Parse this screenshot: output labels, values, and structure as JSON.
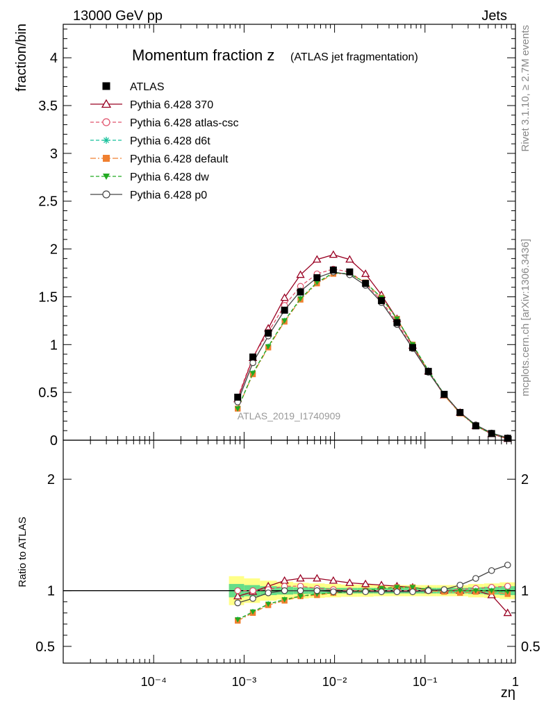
{
  "header": {
    "left": "13000 GeV pp",
    "right": "Jets"
  },
  "side_labels": {
    "rivet": "Rivet 3.1.10, ≥ 2.7M events",
    "source": "mcplots.cern.ch [arXiv:1306.3436]"
  },
  "chart_data": [
    {
      "type": "line",
      "title": "Momentum fraction z",
      "subtitle": "(ATLAS jet fragmentation)",
      "xlabel": "zη",
      "ylabel": "fraction/bin",
      "watermark": "ATLAS_2019_I1740909",
      "xscale": "log",
      "xlim": [
        1e-05,
        1
      ],
      "ylim": [
        0,
        4.35
      ],
      "yticks": [
        0,
        0.5,
        1,
        1.5,
        2,
        2.5,
        3,
        3.5,
        4
      ],
      "ytick_labels": [
        "0",
        "0.5",
        "1",
        "1.5",
        "2",
        "2.5",
        "3",
        "3.5",
        "4"
      ],
      "legend_position": "top-left",
      "x": [
        0.00085,
        0.00125,
        0.00185,
        0.0028,
        0.0042,
        0.0064,
        0.0097,
        0.0147,
        0.022,
        0.033,
        0.049,
        0.073,
        0.109,
        0.163,
        0.244,
        0.364,
        0.545,
        0.82
      ],
      "series": [
        {
          "name": "ATLAS",
          "color": "#000000",
          "marker": "square-filled",
          "dash": "none",
          "values": [
            0.45,
            0.87,
            1.12,
            1.36,
            1.55,
            1.7,
            1.78,
            1.76,
            1.64,
            1.46,
            1.23,
            0.97,
            0.72,
            0.48,
            0.29,
            0.15,
            0.07,
            0.02
          ]
        },
        {
          "name": "Pythia 6.428 370",
          "color": "#990022",
          "marker": "triangle-open",
          "dash": "solid",
          "values": [
            0.43,
            0.86,
            1.17,
            1.49,
            1.73,
            1.89,
            1.94,
            1.89,
            1.74,
            1.52,
            1.27,
            0.99,
            0.72,
            0.47,
            0.29,
            0.15,
            0.065,
            0.015
          ]
        },
        {
          "name": "Pythia 6.428 atlas-csc",
          "color": "#e0506a",
          "marker": "circle-open",
          "dash": "dashed",
          "values": [
            0.45,
            0.87,
            1.13,
            1.41,
            1.61,
            1.74,
            1.79,
            1.76,
            1.64,
            1.46,
            1.23,
            0.97,
            0.72,
            0.48,
            0.29,
            0.15,
            0.07,
            0.02
          ]
        },
        {
          "name": "Pythia 6.428 d6t",
          "color": "#14c09a",
          "marker": "star",
          "dash": "dashed",
          "values": [
            0.33,
            0.7,
            0.98,
            1.25,
            1.48,
            1.65,
            1.75,
            1.74,
            1.65,
            1.49,
            1.27,
            1.0,
            0.73,
            0.48,
            0.29,
            0.15,
            0.07,
            0.02
          ]
        },
        {
          "name": "Pythia 6.428 default",
          "color": "#f08030",
          "marker": "square-filled",
          "dash": "dashdot",
          "values": [
            0.33,
            0.69,
            0.97,
            1.24,
            1.47,
            1.64,
            1.74,
            1.74,
            1.65,
            1.49,
            1.27,
            1.0,
            0.72,
            0.47,
            0.28,
            0.15,
            0.07,
            0.02
          ]
        },
        {
          "name": "Pythia 6.428 dw",
          "color": "#22aa22",
          "marker": "triangle-down-filled",
          "dash": "dashed",
          "values": [
            0.33,
            0.7,
            0.98,
            1.25,
            1.48,
            1.65,
            1.75,
            1.74,
            1.65,
            1.49,
            1.27,
            1.0,
            0.73,
            0.48,
            0.29,
            0.15,
            0.07,
            0.02
          ]
        },
        {
          "name": "Pythia 6.428 p0",
          "color": "#444444",
          "marker": "circle-open",
          "dash": "solid",
          "values": [
            0.4,
            0.81,
            1.09,
            1.36,
            1.56,
            1.7,
            1.76,
            1.73,
            1.62,
            1.44,
            1.21,
            0.96,
            0.71,
            0.48,
            0.29,
            0.16,
            0.075,
            0.025
          ]
        }
      ]
    },
    {
      "type": "line",
      "ylabel": "Ratio to ATLAS",
      "xlabel": "zη",
      "xscale": "log",
      "xlim": [
        1e-05,
        1
      ],
      "ylim": [
        0.35,
        2.35
      ],
      "yticks": [
        0.5,
        1,
        2
      ],
      "ytick_labels": [
        "0.5",
        "1",
        "2"
      ],
      "xtick_labels": [
        "10⁻⁴",
        "10⁻³",
        "10⁻²",
        "10⁻¹",
        "1"
      ],
      "reference_line": 1,
      "uncertainty_band": {
        "inner_color": "#66dd88",
        "outer_color": "#ffff88",
        "x_edges": [
          0.00068,
          0.001,
          0.0015,
          0.0023,
          0.0035,
          0.0052,
          0.0078,
          0.0118,
          0.018,
          0.027,
          0.04,
          0.06,
          0.09,
          0.135,
          0.2,
          0.3,
          0.45,
          0.67,
          1.0
        ],
        "inner_halfwidth": [
          0.06,
          0.05,
          0.04,
          0.035,
          0.03,
          0.03,
          0.025,
          0.025,
          0.025,
          0.025,
          0.025,
          0.025,
          0.025,
          0.025,
          0.025,
          0.03,
          0.035,
          0.04
        ],
        "outer_halfwidth": [
          0.13,
          0.11,
          0.09,
          0.08,
          0.07,
          0.065,
          0.06,
          0.055,
          0.055,
          0.05,
          0.05,
          0.05,
          0.05,
          0.05,
          0.05,
          0.06,
          0.065,
          0.075
        ]
      },
      "x": [
        0.00085,
        0.00125,
        0.00185,
        0.0028,
        0.0042,
        0.0064,
        0.0097,
        0.0147,
        0.022,
        0.033,
        0.049,
        0.073,
        0.109,
        0.163,
        0.244,
        0.364,
        0.545,
        0.82
      ],
      "series": [
        {
          "name": "Pythia 6.428 370",
          "color": "#990022",
          "marker": "triangle-open",
          "dash": "solid",
          "values": [
            0.95,
            0.99,
            1.04,
            1.09,
            1.11,
            1.11,
            1.09,
            1.07,
            1.06,
            1.05,
            1.04,
            1.03,
            1.01,
            1.0,
            1.0,
            1.0,
            0.96,
            0.8
          ]
        },
        {
          "name": "Pythia 6.428 atlas-csc",
          "color": "#e0506a",
          "marker": "circle-open",
          "dash": "dashed",
          "values": [
            1.0,
            1.0,
            1.01,
            1.04,
            1.04,
            1.02,
            1.01,
            1.0,
            1.0,
            1.0,
            1.0,
            1.0,
            1.0,
            1.0,
            1.01,
            1.02,
            1.03,
            1.04
          ]
        },
        {
          "name": "Pythia 6.428 d6t",
          "color": "#14c09a",
          "marker": "star",
          "dash": "dashed",
          "values": [
            0.74,
            0.81,
            0.88,
            0.92,
            0.95,
            0.97,
            0.98,
            0.99,
            1.0,
            1.02,
            1.03,
            1.03,
            1.01,
            1.0,
            1.0,
            1.0,
            1.0,
            0.99
          ]
        },
        {
          "name": "Pythia 6.428 default",
          "color": "#f08030",
          "marker": "square-filled",
          "dash": "dashdot",
          "values": [
            0.73,
            0.8,
            0.87,
            0.91,
            0.95,
            0.96,
            0.98,
            0.99,
            1.0,
            1.02,
            1.03,
            1.03,
            1.0,
            0.99,
            0.98,
            0.99,
            0.99,
            0.97
          ]
        },
        {
          "name": "Pythia 6.428 dw",
          "color": "#22aa22",
          "marker": "triangle-down-filled",
          "dash": "dashed",
          "values": [
            0.74,
            0.81,
            0.88,
            0.92,
            0.95,
            0.97,
            0.98,
            0.99,
            1.0,
            1.02,
            1.03,
            1.03,
            1.01,
            1.0,
            1.0,
            1.0,
            1.0,
            0.99
          ]
        },
        {
          "name": "Pythia 6.428 p0",
          "color": "#444444",
          "marker": "circle-open",
          "dash": "solid",
          "values": [
            0.89,
            0.93,
            0.98,
            1.0,
            1.0,
            1.0,
            0.99,
            0.99,
            0.99,
            0.99,
            0.99,
            0.99,
            1.0,
            1.01,
            1.05,
            1.11,
            1.18,
            1.23
          ]
        }
      ]
    }
  ]
}
